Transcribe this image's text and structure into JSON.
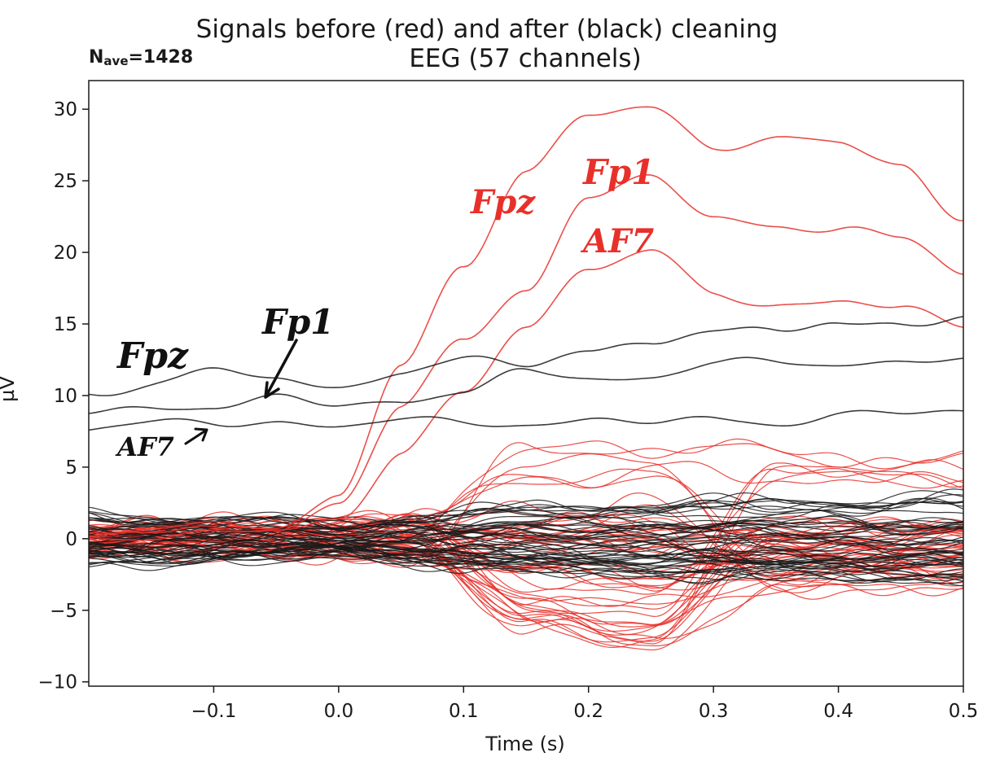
{
  "chart_data": {
    "type": "line",
    "title": "Signals before (red) and after (black) cleaning",
    "subtitle": "EEG (57 channels)",
    "nave_label": "N",
    "nave_sub": "ave",
    "nave_value": "=1428",
    "xlabel": "Time (s)",
    "ylabel": "µV",
    "xlim": [
      -0.2,
      0.5
    ],
    "ylim": [
      -10.3,
      32
    ],
    "xticks": [
      -0.1,
      0.0,
      0.1,
      0.2,
      0.3,
      0.4,
      0.5
    ],
    "xtick_labels": [
      "−0.1",
      "0.0",
      "0.1",
      "0.2",
      "0.3",
      "0.4",
      "0.5"
    ],
    "yticks": [
      -10,
      -5,
      0,
      5,
      10,
      15,
      20,
      25,
      30
    ],
    "ytick_labels": [
      "−10",
      "−5",
      "0",
      "5",
      "10",
      "15",
      "20",
      "25",
      "30"
    ],
    "colors": {
      "before": "#e8302a",
      "after": "#1a1a1a"
    },
    "series": [
      {
        "channel": "Fpz",
        "condition": "before",
        "x": [
          -0.2,
          -0.1,
          -0.05,
          0.0,
          0.05,
          0.1,
          0.15,
          0.2,
          0.25,
          0.3,
          0.35,
          0.4,
          0.45,
          0.5
        ],
        "y": [
          0.5,
          0.8,
          1,
          3,
          12,
          19,
          26,
          29.5,
          30,
          27.5,
          28,
          27.5,
          26,
          22.5
        ]
      },
      {
        "channel": "Fp1",
        "condition": "before",
        "x": [
          -0.2,
          -0.1,
          -0.05,
          0.0,
          0.05,
          0.1,
          0.15,
          0.2,
          0.25,
          0.3,
          0.35,
          0.4,
          0.45,
          0.5
        ],
        "y": [
          0.3,
          0.5,
          0.8,
          2.5,
          9,
          14,
          17.5,
          24,
          25,
          22.5,
          22,
          21.5,
          21,
          18.5
        ]
      },
      {
        "channel": "AF7",
        "condition": "before",
        "x": [
          -0.2,
          -0.1,
          -0.05,
          0.0,
          0.05,
          0.1,
          0.15,
          0.2,
          0.25,
          0.3,
          0.35,
          0.4,
          0.45,
          0.5
        ],
        "y": [
          0.2,
          0.3,
          0.5,
          1.5,
          6,
          10,
          15,
          19,
          20,
          17,
          16.5,
          16.5,
          16,
          15
        ]
      },
      {
        "channel": "Fpz",
        "condition": "after",
        "x": [
          -0.2,
          -0.1,
          -0.05,
          0.0,
          0.05,
          0.1,
          0.15,
          0.2,
          0.25,
          0.3,
          0.35,
          0.4,
          0.45,
          0.5
        ],
        "y": [
          10.2,
          11.5,
          11.2,
          10.6,
          11.8,
          12.4,
          12,
          13.2,
          14,
          14.4,
          14.4,
          15,
          15.2,
          15.5
        ]
      },
      {
        "channel": "Fp1",
        "condition": "after",
        "x": [
          -0.2,
          -0.1,
          -0.05,
          0.0,
          0.05,
          0.1,
          0.15,
          0.2,
          0.25,
          0.3,
          0.35,
          0.4,
          0.45,
          0.5
        ],
        "y": [
          8.7,
          9.4,
          9.8,
          9.2,
          9.7,
          10.4,
          11.5,
          11.3,
          11.3,
          12.2,
          12.3,
          12.4,
          12.2,
          12.4
        ]
      },
      {
        "channel": "AF7",
        "condition": "after",
        "x": [
          -0.2,
          -0.1,
          -0.05,
          0.0,
          0.05,
          0.1,
          0.15,
          0.2,
          0.25,
          0.3,
          0.35,
          0.4,
          0.45,
          0.5
        ],
        "y": [
          7.7,
          8.1,
          8.3,
          7.8,
          8.2,
          8.1,
          8.2,
          8.2,
          8.0,
          8.4,
          8.2,
          8.6,
          8.6,
          9.0
        ]
      }
    ],
    "other_channels_note_visible": false
  },
  "annotations": {
    "black": {
      "fpz": "Fpz",
      "fp1": "Fp1",
      "af7": "AF7"
    },
    "red": {
      "fpz": "Fpz",
      "fp1": "Fp1",
      "af7": "AF7"
    }
  }
}
